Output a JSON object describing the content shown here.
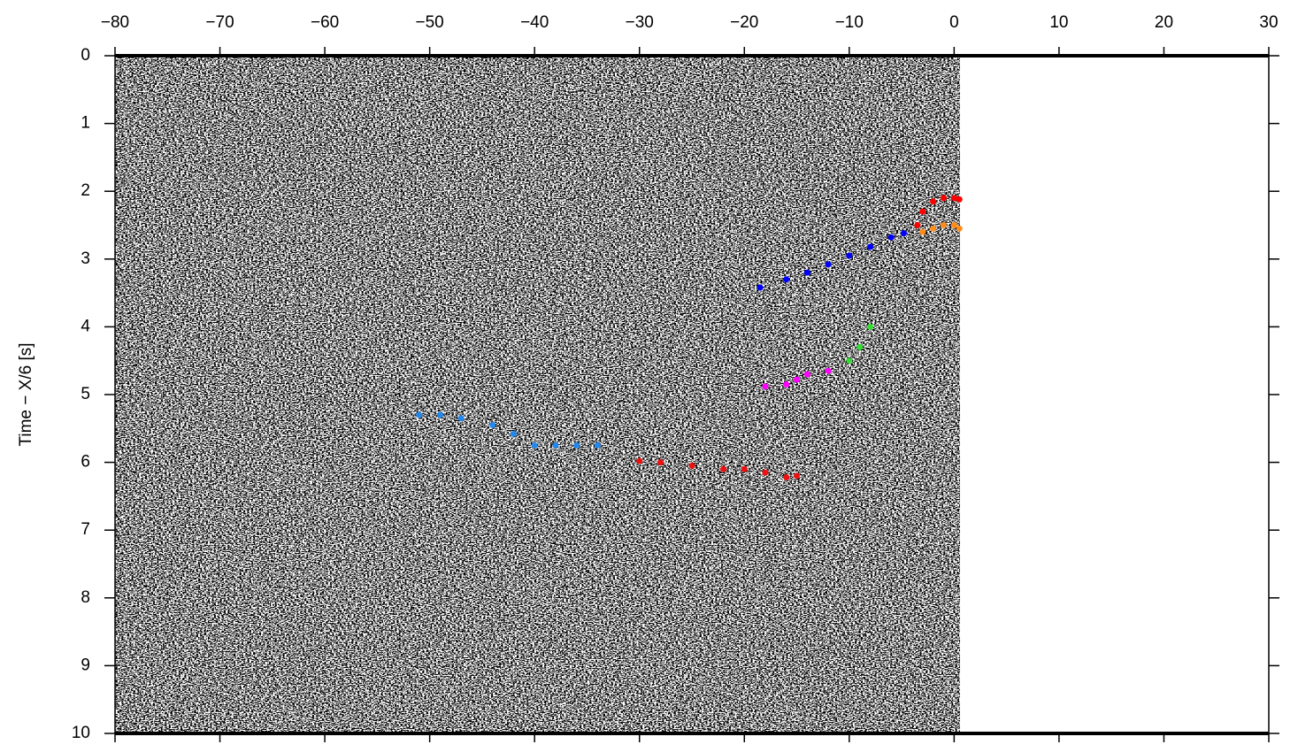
{
  "chart_data": {
    "type": "scatter",
    "y_label": "Time − X/6 [s]",
    "xlim": [
      -80,
      30
    ],
    "ylim": [
      0,
      10
    ],
    "y_inverted": true,
    "xticks": [
      {
        "value": -80,
        "label": "−80"
      },
      {
        "value": -70,
        "label": "−70"
      },
      {
        "value": -60,
        "label": "−60"
      },
      {
        "value": -50,
        "label": "−50"
      },
      {
        "value": -40,
        "label": "−40"
      },
      {
        "value": -30,
        "label": "−30"
      },
      {
        "value": -20,
        "label": "−20"
      },
      {
        "value": -10,
        "label": "−10"
      },
      0,
      10,
      20,
      30
    ],
    "yticks": [
      0,
      1,
      2,
      3,
      4,
      5,
      6,
      7,
      8,
      9,
      10
    ],
    "series": [
      {
        "color": "#0000ff",
        "x": [
          -18.5,
          -16,
          -14,
          -12,
          -10,
          -8,
          -6,
          -4.8
        ],
        "values": [
          3.42,
          3.3,
          3.2,
          3.08,
          2.95,
          2.82,
          2.68,
          2.62
        ]
      },
      {
        "color": "#ff0000",
        "x": [
          -3.5,
          -3,
          -2,
          -1,
          0,
          0.5
        ],
        "values": [
          2.5,
          2.3,
          2.15,
          2.1,
          2.1,
          2.12
        ]
      },
      {
        "color": "#ff8c1a",
        "x": [
          -3,
          -2,
          -1,
          0,
          0.5
        ],
        "values": [
          2.6,
          2.55,
          2.5,
          2.5,
          2.55
        ]
      },
      {
        "color": "#33dd33",
        "x": [
          -10,
          -9,
          -8
        ],
        "values": [
          4.5,
          4.3,
          4.0
        ]
      },
      {
        "color": "#ff00ff",
        "x": [
          -18,
          -16,
          -15,
          -14,
          -12
        ],
        "values": [
          4.88,
          4.85,
          4.78,
          4.7,
          4.65
        ]
      },
      {
        "color": "#2288ee",
        "x": [
          -51,
          -49,
          -47,
          -44,
          -42,
          -40,
          -38,
          -36,
          -34
        ],
        "values": [
          5.3,
          5.3,
          5.35,
          5.45,
          5.58,
          5.75,
          5.75,
          5.75,
          5.75
        ]
      },
      {
        "color": "#ee1111",
        "x": [
          -30,
          -28,
          -25,
          -22,
          -20,
          -18,
          -16,
          -15
        ],
        "values": [
          5.98,
          6.0,
          6.05,
          6.1,
          6.1,
          6.15,
          6.22,
          6.2
        ]
      }
    ]
  }
}
